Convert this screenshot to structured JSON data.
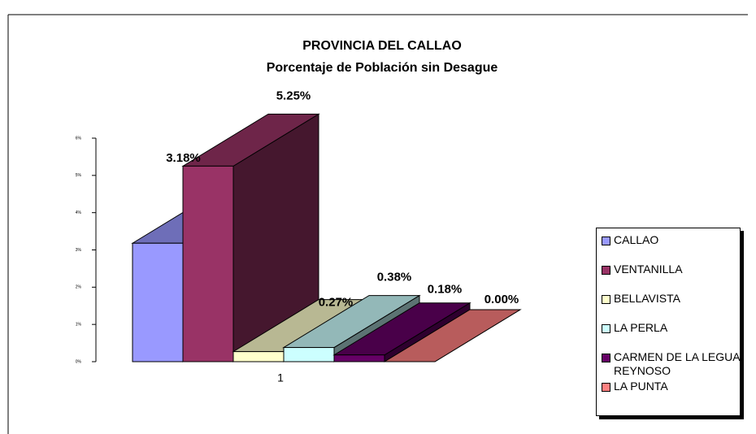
{
  "chart_data": {
    "type": "bar3d",
    "title": "PROVINCIA DEL CALLAO",
    "subtitle": "Porcentaje de Población sin Desague",
    "categories": [
      "1"
    ],
    "series": [
      {
        "name": "CALLAO",
        "color": "#9999ff",
        "values": [
          3.18
        ],
        "value_labels": [
          "3.18%"
        ]
      },
      {
        "name": "VENTANILLA",
        "color": "#993366",
        "values": [
          5.25
        ],
        "value_labels": [
          "5.25%"
        ]
      },
      {
        "name": "BELLAVISTA",
        "color": "#ffffcc",
        "values": [
          0.27
        ],
        "value_labels": [
          "0.27%"
        ]
      },
      {
        "name": "LA PERLA",
        "color": "#ccffff",
        "values": [
          0.38
        ],
        "value_labels": [
          "0.38%"
        ]
      },
      {
        "name": "CARMEN DE LA LEGUA REYNOSO",
        "color": "#660066",
        "values": [
          0.18
        ],
        "value_labels": [
          "0.18%"
        ]
      },
      {
        "name": "LA PUNTA",
        "color": "#ff8080",
        "values": [
          0.0
        ],
        "value_labels": [
          "0.00%"
        ]
      }
    ],
    "ylim": [
      0,
      6
    ],
    "yticks": [
      {
        "value": 0,
        "label": "0%"
      },
      {
        "value": 1,
        "label": "1%"
      },
      {
        "value": 2,
        "label": "2%"
      },
      {
        "value": 3,
        "label": "3%"
      },
      {
        "value": 4,
        "label": "4%"
      },
      {
        "value": 5,
        "label": "5%"
      },
      {
        "value": 6,
        "label": "6%"
      }
    ],
    "legend": "right"
  }
}
